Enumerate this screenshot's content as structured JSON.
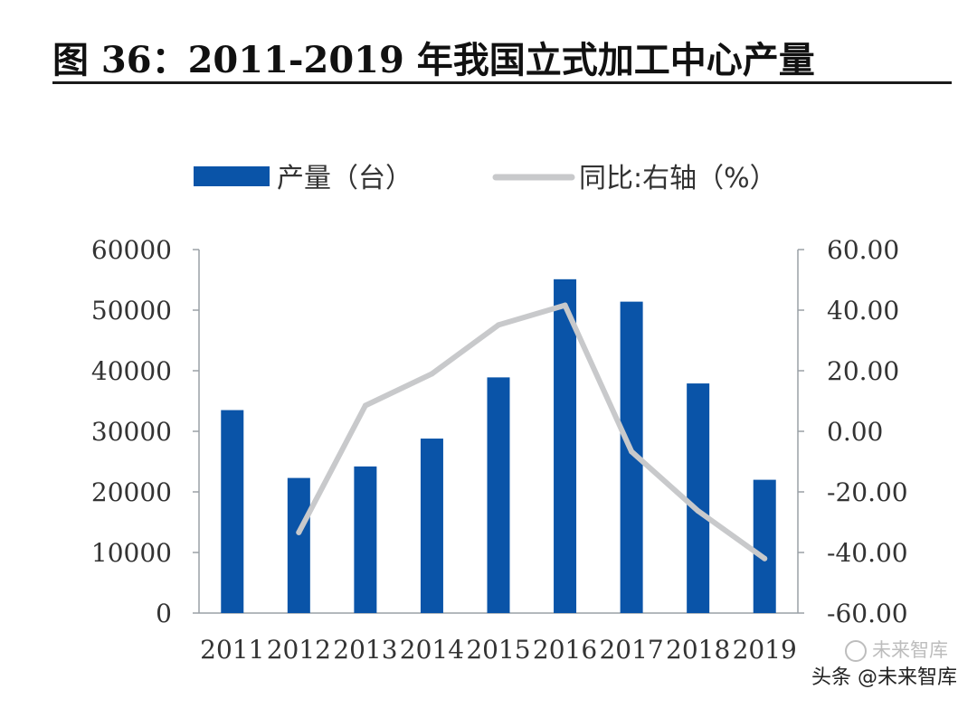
{
  "title": "图 36：2011-2019 年我国立式加工中心产量",
  "watermark": {
    "top": "未来智库",
    "bottom": "头条 @未来智库"
  },
  "chart_data": {
    "type": "bar",
    "categories": [
      "2011",
      "2012",
      "2013",
      "2014",
      "2015",
      "2016",
      "2017",
      "2018",
      "2019"
    ],
    "series": [
      {
        "name": "产量（台）",
        "type": "bar",
        "axis": "left",
        "color": "#0a54a8",
        "values": [
          33500,
          22300,
          24200,
          28800,
          38900,
          55100,
          51400,
          37900,
          22000
        ]
      },
      {
        "name": "同比:右轴（%）",
        "type": "line",
        "axis": "right",
        "color": "#c8c9cb",
        "values": [
          null,
          -33.4,
          8.5,
          19.0,
          35.1,
          41.6,
          -6.7,
          -26.3,
          -42.0
        ]
      }
    ],
    "y_left": {
      "min": 0,
      "max": 60000,
      "ticks": [
        "0",
        "10000",
        "20000",
        "30000",
        "40000",
        "50000",
        "60000"
      ]
    },
    "y_right": {
      "min": -60,
      "max": 60,
      "ticks": [
        "-60.00",
        "-40.00",
        "-20.00",
        "0.00",
        "20.00",
        "40.00",
        "60.00"
      ]
    },
    "legend_position": "top",
    "grid": false
  }
}
